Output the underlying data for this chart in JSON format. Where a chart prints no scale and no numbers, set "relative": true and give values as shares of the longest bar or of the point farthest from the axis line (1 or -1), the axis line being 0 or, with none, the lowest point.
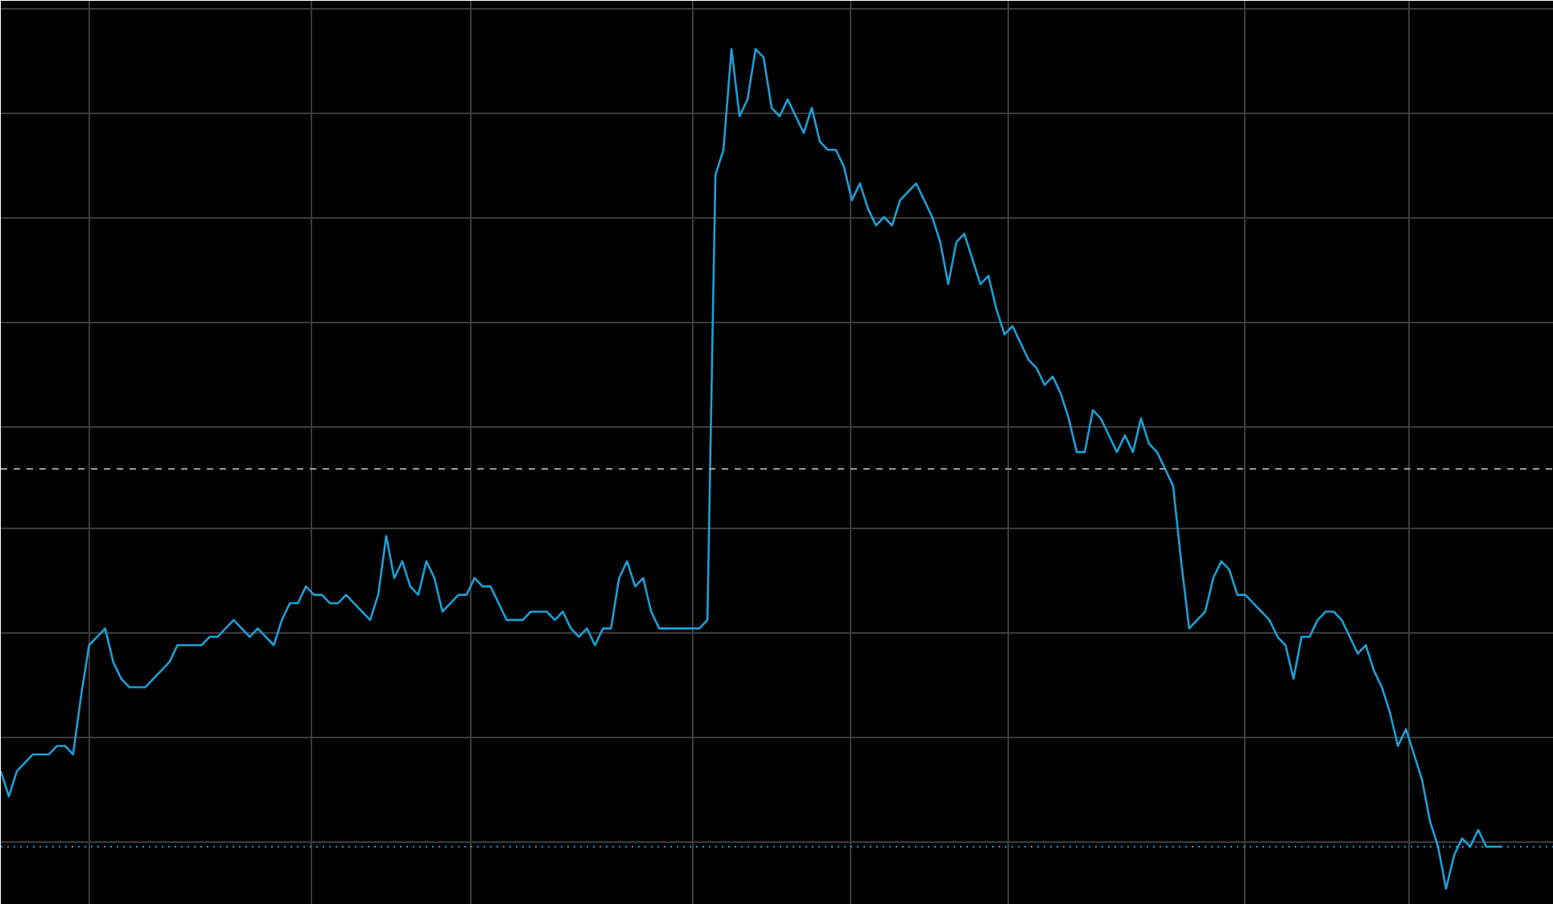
{
  "chart_data": {
    "type": "line",
    "relative": true,
    "grid": true,
    "marker": "none",
    "line_style": "solid",
    "categories": [
      null,
      null,
      null,
      null,
      null,
      null,
      null,
      null,
      null,
      null,
      null,
      null,
      null,
      null,
      null,
      null,
      null,
      null,
      null,
      null,
      null,
      null,
      null,
      null,
      null,
      null,
      null,
      null,
      null,
      null,
      null,
      null,
      null,
      null,
      null,
      null,
      null,
      null,
      null,
      null,
      null,
      null,
      null,
      null,
      null,
      null,
      null,
      null,
      null,
      null,
      null,
      null,
      null,
      null,
      null,
      null,
      null,
      null,
      null,
      null,
      null,
      null,
      null,
      null,
      null,
      null,
      null,
      null,
      null,
      null,
      null,
      null,
      null,
      null,
      null,
      null,
      null,
      null,
      null,
      null,
      null,
      null,
      null,
      null,
      null,
      null,
      null,
      null,
      null,
      null,
      null,
      null,
      null,
      null,
      null,
      null,
      null,
      null,
      null,
      null,
      null,
      null,
      null,
      null,
      null,
      null,
      null,
      null,
      null,
      null,
      null,
      null,
      null,
      null,
      null,
      null,
      null,
      null,
      null,
      null,
      null,
      null,
      null,
      null,
      null,
      null,
      null,
      null,
      null,
      null,
      null,
      null,
      null,
      null,
      null,
      null,
      null,
      null,
      null,
      null,
      null,
      null,
      null,
      null,
      null,
      null,
      null,
      null,
      null,
      null,
      null,
      null,
      null,
      null,
      null,
      null,
      null,
      null,
      null,
      null,
      null,
      null,
      null,
      null,
      null,
      null,
      null,
      null,
      null,
      null,
      null,
      null,
      null,
      null,
      null,
      null,
      null,
      null,
      null,
      null,
      null,
      null,
      null,
      null,
      null,
      null,
      null,
      null
    ],
    "series": [
      {
        "color": "#1e9fd6",
        "values": [
          0.14,
          0.11,
          0.14,
          0.15,
          0.16,
          0.16,
          0.16,
          0.17,
          0.17,
          0.16,
          0.23,
          0.29,
          0.3,
          0.31,
          0.27,
          0.25,
          0.24,
          0.24,
          0.24,
          0.25,
          0.26,
          0.27,
          0.29,
          0.29,
          0.29,
          0.29,
          0.3,
          0.3,
          0.31,
          0.32,
          0.31,
          0.3,
          0.31,
          0.3,
          0.29,
          0.32,
          0.34,
          0.34,
          0.36,
          0.35,
          0.35,
          0.34,
          0.34,
          0.35,
          0.34,
          0.33,
          0.32,
          0.35,
          0.42,
          0.37,
          0.39,
          0.36,
          0.35,
          0.39,
          0.37,
          0.33,
          0.34,
          0.35,
          0.35,
          0.37,
          0.36,
          0.36,
          0.34,
          0.32,
          0.32,
          0.32,
          0.33,
          0.33,
          0.33,
          0.32,
          0.33,
          0.31,
          0.3,
          0.31,
          0.29,
          0.31,
          0.31,
          0.37,
          0.39,
          0.36,
          0.37,
          0.33,
          0.31,
          0.31,
          0.31,
          0.31,
          0.31,
          0.31,
          0.32,
          0.85,
          0.88,
          1,
          0.92,
          0.94,
          1,
          0.99,
          0.93,
          0.92,
          0.94,
          0.92,
          0.9,
          0.93,
          0.89,
          0.88,
          0.88,
          0.86,
          0.82,
          0.84,
          0.81,
          0.79,
          0.8,
          0.79,
          0.82,
          0.83,
          0.84,
          0.82,
          0.8,
          0.77,
          0.72,
          0.77,
          0.78,
          0.75,
          0.72,
          0.73,
          0.69,
          0.66,
          0.67,
          0.65,
          0.63,
          0.62,
          0.6,
          0.61,
          0.59,
          0.56,
          0.52,
          0.52,
          0.57,
          0.56,
          0.54,
          0.52,
          0.54,
          0.52,
          0.56,
          0.53,
          0.52,
          0.5,
          0.48,
          0.39,
          0.31,
          0.32,
          0.33,
          0.37,
          0.39,
          0.38,
          0.35,
          0.35,
          0.34,
          0.33,
          0.32,
          0.3,
          0.29,
          0.25,
          0.3,
          0.3,
          0.32,
          0.33,
          0.33,
          0.32,
          0.3,
          0.28,
          0.29,
          0.26,
          0.24,
          0.21,
          0.17,
          0.19,
          0.16,
          0.13,
          0.08,
          0.05,
          0,
          0.04,
          0.06,
          0.05,
          0.07,
          0.05,
          0.05,
          0.05
        ]
      }
    ],
    "ref_lines": [
      {
        "axis": "y",
        "value": 0.5,
        "color": "#9a9a9a",
        "line_style": "dashed"
      },
      {
        "axis": "y",
        "value": 0.05,
        "color": "#1e9fd6",
        "line_style": "dotted"
      }
    ]
  }
}
